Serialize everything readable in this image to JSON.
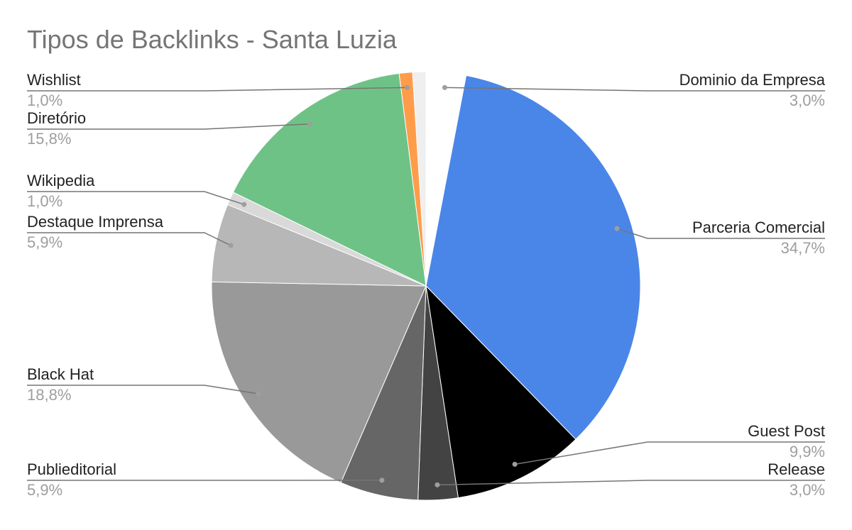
{
  "chart_data": {
    "type": "pie",
    "title": "Tipos de Backlinks - Santa Luzia",
    "slices": [
      {
        "label": "Dominio da Empresa",
        "value": 3.0,
        "display": "3,0%",
        "color": "#ffffff"
      },
      {
        "label": "Parceria Comercial",
        "value": 34.7,
        "display": "34,7%",
        "color": "#4a86e8"
      },
      {
        "label": "Guest Post",
        "value": 9.9,
        "display": "9,9%",
        "color": "#000000"
      },
      {
        "label": "Release",
        "value": 3.0,
        "display": "3,0%",
        "color": "#434343"
      },
      {
        "label": "Publieditorial",
        "value": 5.9,
        "display": "5,9%",
        "color": "#666666"
      },
      {
        "label": "Black Hat",
        "value": 18.8,
        "display": "18,8%",
        "color": "#999999"
      },
      {
        "label": "Destaque Imprensa",
        "value": 5.9,
        "display": "5,9%",
        "color": "#b7b7b7"
      },
      {
        "label": "Wikipedia",
        "value": 1.0,
        "display": "1,0%",
        "color": "#d9d9d9"
      },
      {
        "label": "Diretório",
        "value": 15.8,
        "display": "15,8%",
        "color": "#6fc286"
      },
      {
        "label": "Wishlist",
        "value": 1.0,
        "display": "1,0%",
        "color": "#ff9c4a"
      },
      {
        "label": "",
        "value": 1.0,
        "display": "",
        "color": "#efefef"
      }
    ],
    "legend": "labels with leader lines",
    "colors": {
      "title": "#757575",
      "label": "#222222",
      "value": "#9e9e9e",
      "leader": "#757575"
    }
  }
}
